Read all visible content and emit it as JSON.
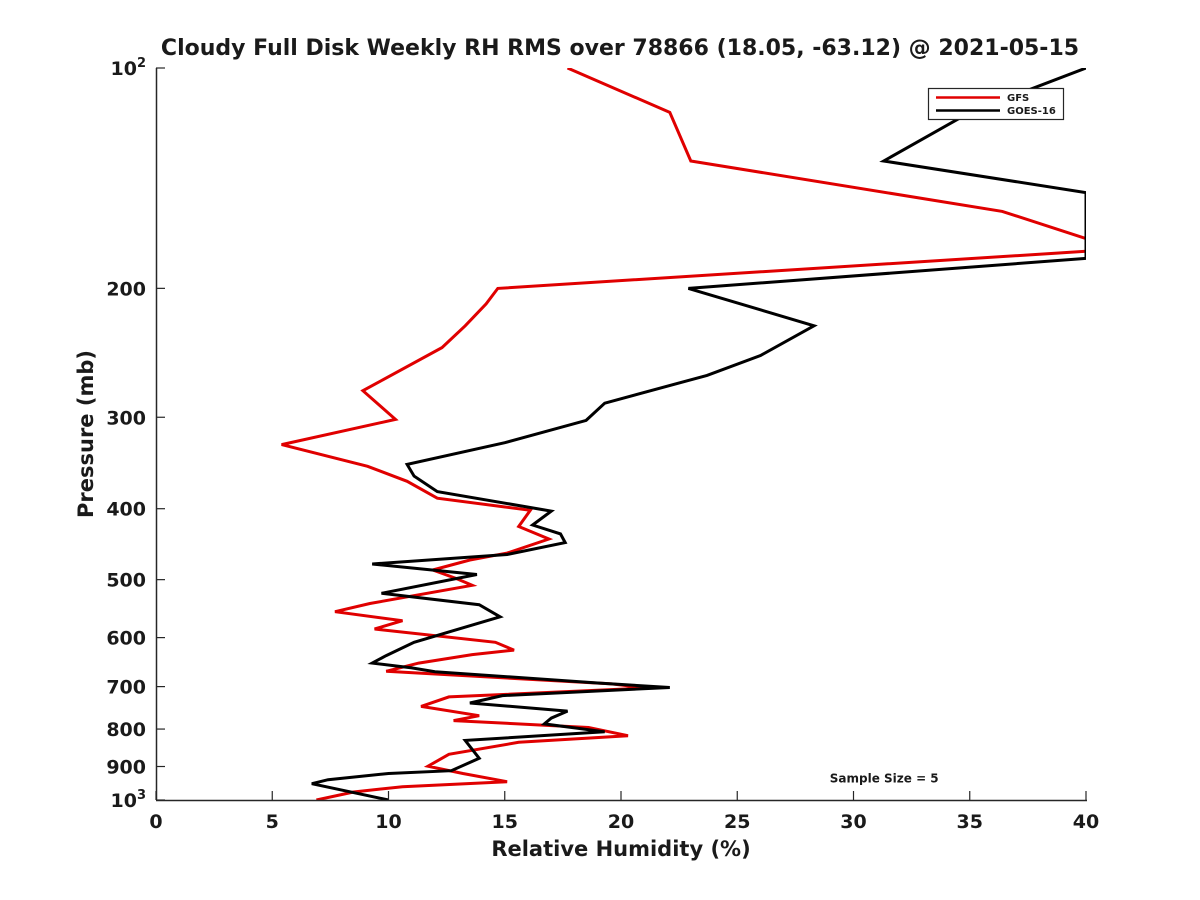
{
  "chart_data": {
    "type": "line",
    "title": "Cloudy Full Disk Weekly RH RMS over 78866 (18.05, -63.12) @ 2021-05-15",
    "xlabel": "Relative Humidity (%)",
    "ylabel": "Pressure (mb)",
    "xlim": [
      0,
      40
    ],
    "ylim": [
      100,
      1000
    ],
    "yscale": "log",
    "y_reversed": true,
    "grid": false,
    "legend_position": "top-right",
    "x_ticks": [
      {
        "value": 0,
        "label": "0"
      },
      {
        "value": 5,
        "label": "5"
      },
      {
        "value": 10,
        "label": "10"
      },
      {
        "value": 15,
        "label": "15"
      },
      {
        "value": 20,
        "label": "20"
      },
      {
        "value": 25,
        "label": "25"
      },
      {
        "value": 30,
        "label": "30"
      },
      {
        "value": 35,
        "label": "35"
      },
      {
        "value": 40,
        "label": "40"
      }
    ],
    "y_ticks": [
      {
        "value": 100,
        "label": "10",
        "sup": "2"
      },
      {
        "value": 200,
        "label": "200",
        "sup": ""
      },
      {
        "value": 300,
        "label": "300",
        "sup": ""
      },
      {
        "value": 400,
        "label": "400",
        "sup": ""
      },
      {
        "value": 500,
        "label": "500",
        "sup": ""
      },
      {
        "value": 600,
        "label": "600",
        "sup": ""
      },
      {
        "value": 700,
        "label": "700",
        "sup": ""
      },
      {
        "value": 800,
        "label": "800",
        "sup": ""
      },
      {
        "value": 900,
        "label": "900",
        "sup": ""
      },
      {
        "value": 1000,
        "label": "10",
        "sup": "3"
      }
    ],
    "series": [
      {
        "name": "GFS",
        "color": "#e00000",
        "points": [
          [
            17.7,
            100
          ],
          [
            22.1,
            115
          ],
          [
            23.0,
            134
          ],
          [
            36.4,
            157
          ],
          [
            40.0,
            171
          ],
          [
            40.0,
            178
          ],
          [
            14.7,
            200
          ],
          [
            14.2,
            210
          ],
          [
            13.3,
            225
          ],
          [
            12.3,
            241
          ],
          [
            8.9,
            276
          ],
          [
            10.3,
            302
          ],
          [
            5.4,
            327
          ],
          [
            9.1,
            350
          ],
          [
            10.8,
            367
          ],
          [
            12.1,
            387
          ],
          [
            16.1,
            402
          ],
          [
            15.6,
            423
          ],
          [
            16.9,
            440
          ],
          [
            15.1,
            460
          ],
          [
            13.5,
            470
          ],
          [
            11.9,
            485
          ],
          [
            12.9,
            498
          ],
          [
            13.6,
            509
          ],
          [
            9.2,
            539
          ],
          [
            7.7,
            553
          ],
          [
            10.6,
            569
          ],
          [
            9.4,
            584
          ],
          [
            14.6,
            609
          ],
          [
            15.4,
            624
          ],
          [
            13.6,
            633
          ],
          [
            11.3,
            650
          ],
          [
            9.9,
            667
          ],
          [
            19.6,
            694
          ],
          [
            21.1,
            703
          ],
          [
            12.6,
            723
          ],
          [
            11.4,
            745
          ],
          [
            13.9,
            767
          ],
          [
            12.8,
            779
          ],
          [
            18.6,
            796
          ],
          [
            20.3,
            817
          ],
          [
            15.6,
            834
          ],
          [
            12.6,
            866
          ],
          [
            11.7,
            899
          ],
          [
            13.2,
            920
          ],
          [
            15.1,
            944
          ],
          [
            10.6,
            959
          ],
          [
            8.5,
            975
          ],
          [
            6.9,
            1000
          ]
        ]
      },
      {
        "name": "GOES-16",
        "color": "#000000",
        "points": [
          [
            40.0,
            100
          ],
          [
            35.0,
            115
          ],
          [
            31.3,
            134
          ],
          [
            40.0,
            148
          ],
          [
            40.0,
            182
          ],
          [
            22.9,
            200
          ],
          [
            28.3,
            225
          ],
          [
            26.0,
            247
          ],
          [
            23.7,
            263
          ],
          [
            19.3,
            287
          ],
          [
            18.5,
            303
          ],
          [
            15.0,
            325
          ],
          [
            10.8,
            348
          ],
          [
            11.1,
            361
          ],
          [
            12.1,
            379
          ],
          [
            17.0,
            403
          ],
          [
            16.2,
            421
          ],
          [
            17.4,
            433
          ],
          [
            17.6,
            445
          ],
          [
            15.1,
            462
          ],
          [
            9.3,
            476
          ],
          [
            13.8,
            492
          ],
          [
            9.7,
            522
          ],
          [
            13.9,
            541
          ],
          [
            14.8,
            562
          ],
          [
            12.8,
            587
          ],
          [
            11.1,
            609
          ],
          [
            9.9,
            635
          ],
          [
            9.3,
            650
          ],
          [
            11.0,
            660
          ],
          [
            12.0,
            668
          ],
          [
            19.0,
            692
          ],
          [
            22.1,
            702
          ],
          [
            14.9,
            720
          ],
          [
            13.5,
            737
          ],
          [
            17.7,
            756
          ],
          [
            17.0,
            773
          ],
          [
            16.7,
            787
          ],
          [
            19.3,
            807
          ],
          [
            13.3,
            829
          ],
          [
            13.9,
            877
          ],
          [
            12.7,
            912
          ],
          [
            10.0,
            920
          ],
          [
            7.4,
            938
          ],
          [
            6.7,
            950
          ],
          [
            10.0,
            1000
          ]
        ]
      }
    ],
    "legend": [
      {
        "label": "GFS",
        "color": "#e00000"
      },
      {
        "label": "GOES-16",
        "color": "#000000"
      }
    ],
    "annotations": [
      {
        "text": "Sample Size = 5",
        "x": 35.0,
        "y": 934
      }
    ]
  }
}
